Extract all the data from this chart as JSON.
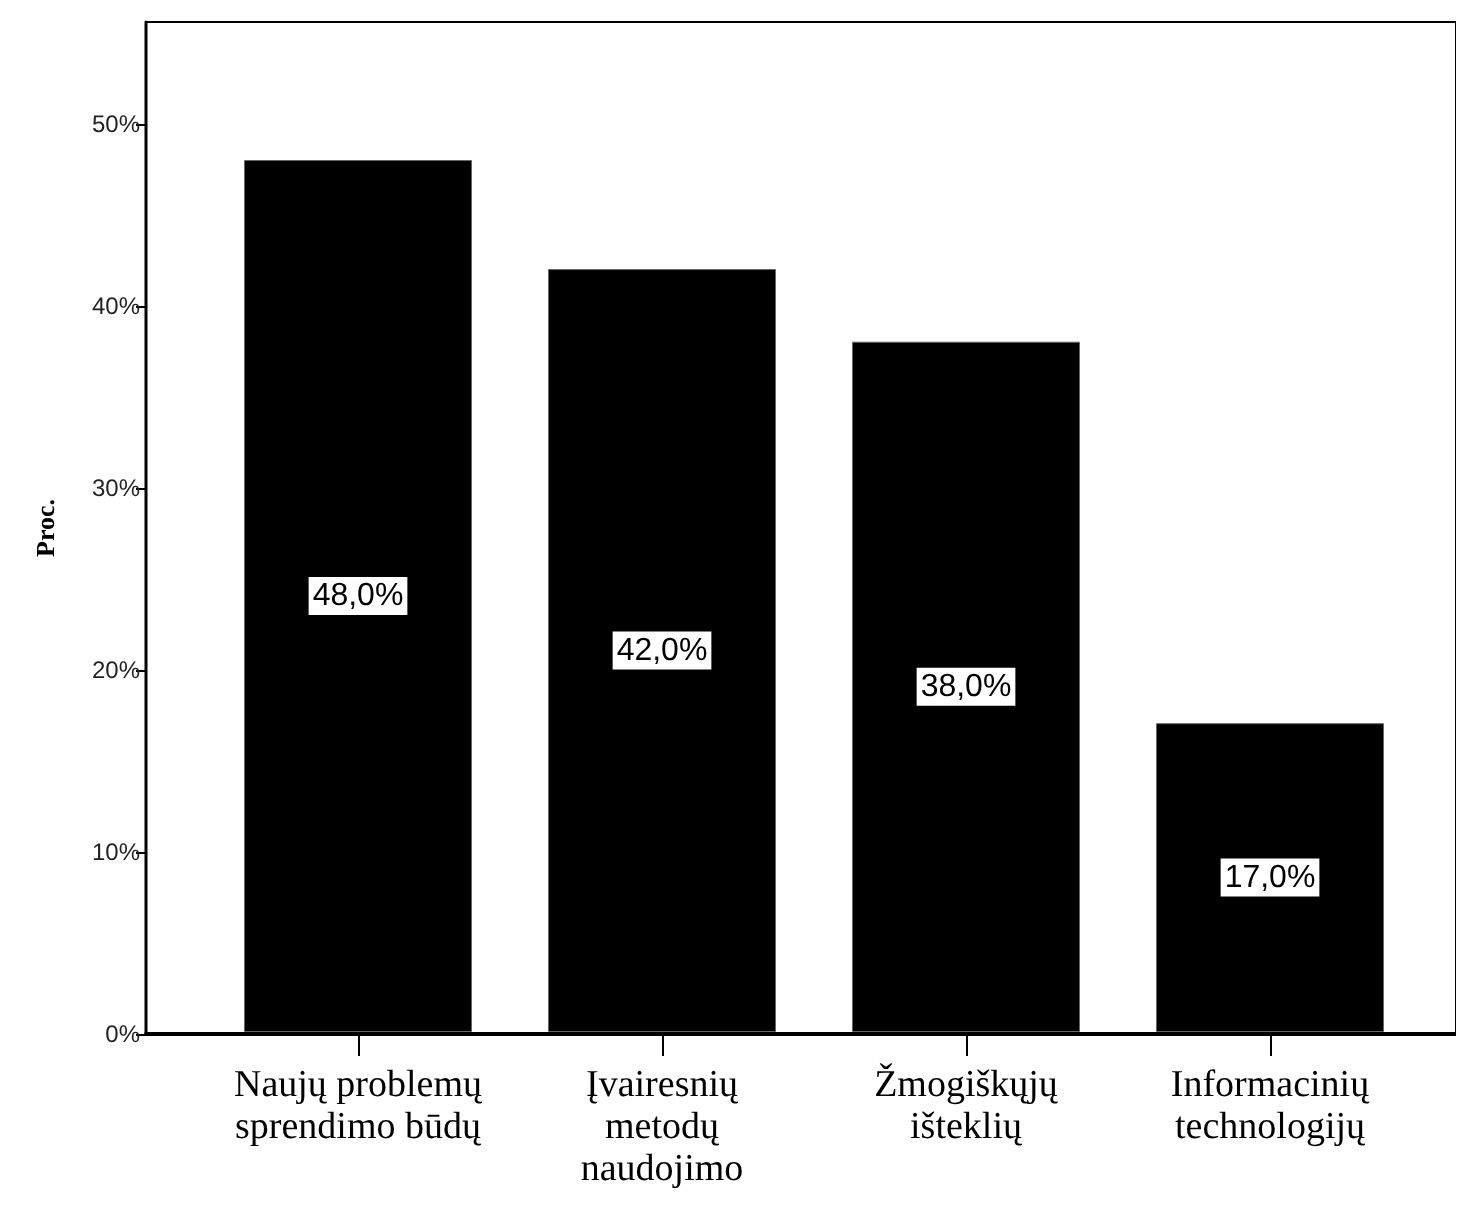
{
  "chart_data": {
    "type": "bar",
    "ylabel": "Proc.",
    "categories": [
      "Naujų problemų\nsprendimo būdų",
      "Įvairesnių\nmetodų\nnaudojimo",
      "Žmogiškųjų\ništeklių",
      "Informacinių\ntechnologijų"
    ],
    "values": [
      48,
      42,
      38,
      17
    ],
    "color": "#000000",
    "value_labels": [
      "48,0%",
      "42,0%",
      "38,0%",
      "17,0%"
    ],
    "ylim": [
      0,
      55.6
    ],
    "yticks": [
      {
        "value": 0,
        "label": "0%"
      },
      {
        "value": 10,
        "label": "10%"
      },
      {
        "value": 20,
        "label": "20%"
      },
      {
        "value": 30,
        "label": "30%"
      },
      {
        "value": 40,
        "label": "40%"
      },
      {
        "value": 50,
        "label": "50%"
      }
    ]
  }
}
